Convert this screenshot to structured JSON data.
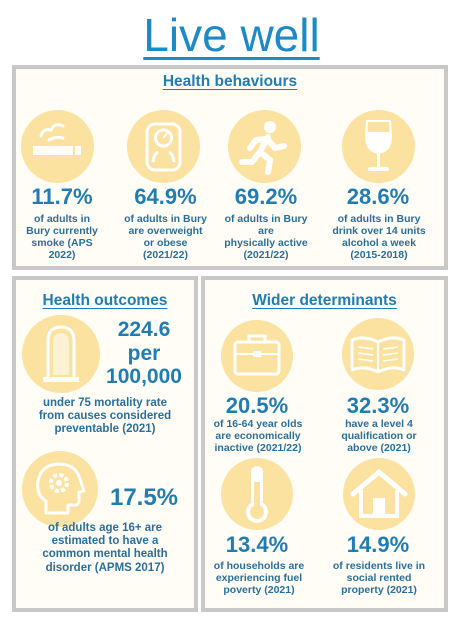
{
  "title": "Live well",
  "health_behaviours": {
    "title": "Health behaviours",
    "items": [
      {
        "icon": "smoking-icon",
        "value": "11.7%",
        "desc": [
          "of adults in",
          "Bury currently",
          "smoke (APS",
          "2022)"
        ]
      },
      {
        "icon": "weighing-scale-icon",
        "value": "64.9%",
        "desc": [
          "of adults in Bury",
          "are overweight",
          "or obese",
          "(2021/22)"
        ]
      },
      {
        "icon": "running-person-icon",
        "value": "69.2%",
        "desc": [
          "of adults in Bury",
          "are",
          "physically active",
          "(2021/22)"
        ]
      },
      {
        "icon": "wine-glass-icon",
        "value": "28.6%",
        "desc": [
          "of adults in Bury",
          "drink over 14 units",
          "alcohol a week",
          "(2015-2018)"
        ]
      }
    ]
  },
  "health_outcomes": {
    "title": "Health outcomes",
    "mortality": {
      "icon": "headstone-icon",
      "value_lines": [
        "224.6",
        "per",
        "100,000"
      ],
      "desc": [
        "under 75 mortality rate",
        "from causes considered",
        "preventable (2021)"
      ]
    },
    "mental": {
      "icon": "head-gear-icon",
      "value": "17.5%",
      "desc": [
        "of adults age 16+ are",
        "estimated to have a",
        "common mental health",
        "disorder (APMS 2017)"
      ]
    }
  },
  "wider_determinants": {
    "title": "Wider determinants",
    "items": [
      {
        "icon": "briefcase-icon",
        "value": "20.5%",
        "desc": [
          "of 16-64 year olds",
          "are economically",
          "inactive (2021/22)"
        ]
      },
      {
        "icon": "open-book-icon",
        "value": "32.3%",
        "desc": [
          "have a level 4",
          "qualification or",
          "above (2021)"
        ]
      },
      {
        "icon": "thermometer-icon",
        "value": "13.4%",
        "desc": [
          "of households are",
          "experiencing fuel",
          "poverty (2021)"
        ]
      },
      {
        "icon": "house-icon",
        "value": "14.9%",
        "desc": [
          "of residents live in",
          "social rented",
          "property (2021)"
        ]
      }
    ]
  }
}
